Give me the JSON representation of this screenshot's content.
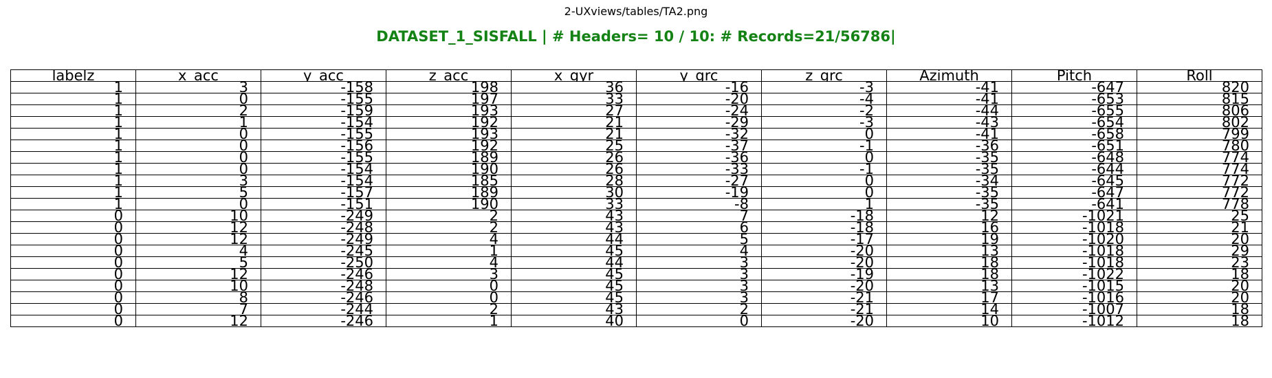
{
  "header": {
    "file_path": "2-UXviews/tables/TA2.png",
    "dataset_title": "DATASET_1_SISFALL | # Headers= 10 / 10: # Records=21/56786|",
    "title_color": "#148214"
  },
  "chart_data": {
    "type": "table",
    "columns": [
      "labelz",
      "x_acc",
      "y_acc",
      "z_acc",
      "x_gyr",
      "y_grc",
      "z_grc",
      "Azimuth",
      "Pitch",
      "Roll"
    ],
    "rows": [
      [
        1,
        3,
        -158,
        198,
        36,
        -16,
        -3,
        -41,
        -647,
        820
      ],
      [
        1,
        0,
        -155,
        197,
        33,
        -20,
        -4,
        -41,
        -653,
        815
      ],
      [
        1,
        2,
        -159,
        193,
        27,
        -24,
        -2,
        -44,
        -655,
        806
      ],
      [
        1,
        1,
        -154,
        192,
        21,
        -29,
        -3,
        -43,
        -654,
        802
      ],
      [
        1,
        0,
        -155,
        193,
        21,
        -32,
        0,
        -41,
        -658,
        799
      ],
      [
        1,
        0,
        -156,
        192,
        25,
        -37,
        -1,
        -36,
        -651,
        780
      ],
      [
        1,
        0,
        -155,
        189,
        26,
        -36,
        0,
        -35,
        -648,
        774
      ],
      [
        1,
        0,
        -154,
        190,
        26,
        -33,
        -1,
        -35,
        -644,
        774
      ],
      [
        1,
        3,
        -154,
        185,
        28,
        -27,
        0,
        -34,
        -645,
        772
      ],
      [
        1,
        5,
        -157,
        189,
        30,
        -19,
        0,
        -35,
        -647,
        772
      ],
      [
        1,
        0,
        -151,
        190,
        33,
        -8,
        1,
        -35,
        -641,
        778
      ],
      [
        0,
        10,
        -249,
        2,
        43,
        7,
        -18,
        12,
        -1021,
        25
      ],
      [
        0,
        12,
        -248,
        2,
        43,
        6,
        -18,
        16,
        -1018,
        21
      ],
      [
        0,
        12,
        -249,
        4,
        44,
        5,
        -17,
        19,
        -1020,
        20
      ],
      [
        0,
        4,
        -245,
        1,
        45,
        4,
        -20,
        13,
        -1018,
        29
      ],
      [
        0,
        5,
        -250,
        4,
        44,
        3,
        -20,
        18,
        -1018,
        23
      ],
      [
        0,
        12,
        -246,
        3,
        45,
        3,
        -19,
        18,
        -1022,
        18
      ],
      [
        0,
        10,
        -248,
        0,
        45,
        3,
        -20,
        13,
        -1015,
        20
      ],
      [
        0,
        8,
        -246,
        0,
        45,
        3,
        -21,
        17,
        -1016,
        20
      ],
      [
        0,
        7,
        -244,
        2,
        43,
        2,
        -21,
        14,
        -1007,
        18
      ],
      [
        0,
        12,
        -246,
        1,
        40,
        0,
        -20,
        10,
        -1012,
        18
      ]
    ]
  }
}
